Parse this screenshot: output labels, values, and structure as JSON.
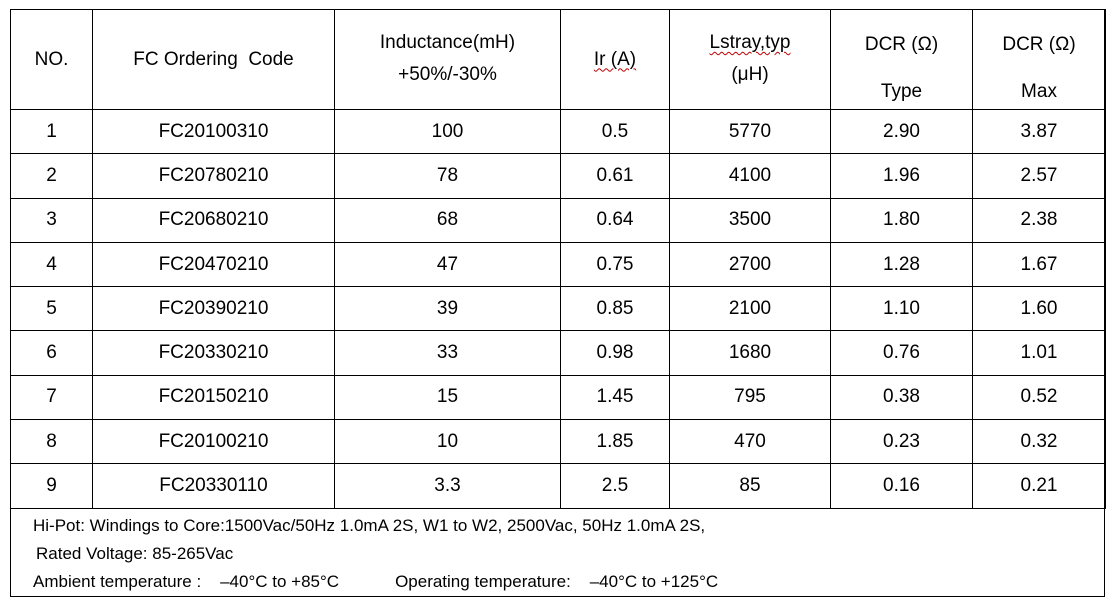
{
  "table": {
    "headers": {
      "no": "NO.",
      "code": "FC Ordering  Code",
      "inductance_l1": "Inductance(mH)",
      "inductance_l2": "+50%/-30%",
      "ir": "Ir (A)",
      "lstray_l1": "Lstray,typ",
      "lstray_l2": "(μH)",
      "dcr_type_l1": "DCR (Ω)",
      "dcr_type_l2": "Type",
      "dcr_max_l1": "DCR (Ω)",
      "dcr_max_l2": "Max"
    },
    "rows": [
      {
        "no": "1",
        "code": "FC20100310",
        "inductance": "100",
        "ir": "0.5",
        "lstray": "5770",
        "dcr_type": "2.90",
        "dcr_max": "3.87"
      },
      {
        "no": "2",
        "code": "FC20780210",
        "inductance": "78",
        "ir": "0.61",
        "lstray": "4100",
        "dcr_type": "1.96",
        "dcr_max": "2.57"
      },
      {
        "no": "3",
        "code": "FC20680210",
        "inductance": "68",
        "ir": "0.64",
        "lstray": "3500",
        "dcr_type": "1.80",
        "dcr_max": "2.38"
      },
      {
        "no": "4",
        "code": "FC20470210",
        "inductance": "47",
        "ir": "0.75",
        "lstray": "2700",
        "dcr_type": "1.28",
        "dcr_max": "1.67"
      },
      {
        "no": "5",
        "code": "FC20390210",
        "inductance": "39",
        "ir": "0.85",
        "lstray": "2100",
        "dcr_type": "1.10",
        "dcr_max": "1.60"
      },
      {
        "no": "6",
        "code": "FC20330210",
        "inductance": "33",
        "ir": "0.98",
        "lstray": "1680",
        "dcr_type": "0.76",
        "dcr_max": "1.01"
      },
      {
        "no": "7",
        "code": "FC20150210",
        "inductance": "15",
        "ir": "1.45",
        "lstray": "795",
        "dcr_type": "0.38",
        "dcr_max": "0.52"
      },
      {
        "no": "8",
        "code": "FC20100210",
        "inductance": "10",
        "ir": "1.85",
        "lstray": "470",
        "dcr_type": "0.23",
        "dcr_max": "0.32"
      },
      {
        "no": "9",
        "code": "FC20330110",
        "inductance": "3.3",
        "ir": "2.5",
        "lstray": "85",
        "dcr_type": "0.16",
        "dcr_max": "0.21"
      }
    ]
  },
  "notes": {
    "hipot": "Hi-Pot: Windings to Core:1500Vac/50Hz 1.0mA 2S, W1 to W2, 2500Vac, 50Hz 1.0mA 2S,",
    "rated_voltage": "Rated Voltage: 85-265Vac",
    "ambient": "Ambient temperature :    –40°C to +85°C",
    "operating": "Operating temperature:    –40°C to +125°C"
  },
  "colors": {
    "border": "#000000",
    "spellcheck_underline": "#c00000"
  }
}
